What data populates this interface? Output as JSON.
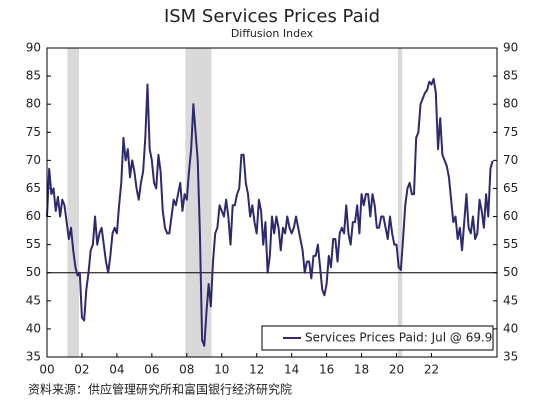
{
  "chart_data": {
    "type": "line",
    "title": "ISM Services Prices Paid",
    "subtitle": "Diffusion Index",
    "source": "资料来源：供应管理研究所和富国银行经济研究院",
    "xlim": [
      2000,
      2025.75
    ],
    "xticks": [
      {
        "value": 2000,
        "label": "00"
      },
      {
        "value": 2002,
        "label": "02"
      },
      {
        "value": 2004,
        "label": "04"
      },
      {
        "value": 2006,
        "label": "06"
      },
      {
        "value": 2008,
        "label": "08"
      },
      {
        "value": 2010,
        "label": "10"
      },
      {
        "value": 2012,
        "label": "12"
      },
      {
        "value": 2014,
        "label": "14"
      },
      {
        "value": 2016,
        "label": "16"
      },
      {
        "value": 2018,
        "label": "18"
      },
      {
        "value": 2020,
        "label": "20"
      },
      {
        "value": 2022,
        "label": "22"
      }
    ],
    "ylim": [
      35,
      90
    ],
    "yticks": [
      35,
      40,
      45,
      50,
      55,
      60,
      65,
      70,
      75,
      80,
      85,
      90
    ],
    "reference_line": 50,
    "shaded_periods": [
      [
        2001.17,
        2001.83
      ],
      [
        2007.92,
        2009.42
      ],
      [
        2020.08,
        2020.33
      ]
    ],
    "shade_color": "#d9d9d9",
    "legend": "lower right",
    "x": [
      2000,
      2000.125,
      2000.25,
      2000.375,
      2000.5,
      2000.625,
      2000.75,
      2000.875,
      2001,
      2001.125,
      2001.25,
      2001.375,
      2001.5,
      2001.625,
      2001.75,
      2001.875,
      2002,
      2002.125,
      2002.25,
      2002.375,
      2002.5,
      2002.625,
      2002.75,
      2002.875,
      2003,
      2003.125,
      2003.25,
      2003.375,
      2003.5,
      2003.625,
      2003.75,
      2003.875,
      2004,
      2004.125,
      2004.25,
      2004.375,
      2004.5,
      2004.625,
      2004.75,
      2004.875,
      2005,
      2005.125,
      2005.25,
      2005.375,
      2005.5,
      2005.625,
      2005.75,
      2005.875,
      2006,
      2006.125,
      2006.25,
      2006.375,
      2006.5,
      2006.625,
      2006.75,
      2006.875,
      2007,
      2007.125,
      2007.25,
      2007.375,
      2007.5,
      2007.625,
      2007.75,
      2007.875,
      2008,
      2008.125,
      2008.25,
      2008.375,
      2008.5,
      2008.625,
      2008.75,
      2008.875,
      2009,
      2009.125,
      2009.25,
      2009.375,
      2009.5,
      2009.625,
      2009.75,
      2009.875,
      2010,
      2010.125,
      2010.25,
      2010.375,
      2010.5,
      2010.625,
      2010.75,
      2010.875,
      2011,
      2011.125,
      2011.25,
      2011.375,
      2011.5,
      2011.625,
      2011.75,
      2011.875,
      2012,
      2012.125,
      2012.25,
      2012.375,
      2012.5,
      2012.625,
      2012.75,
      2012.875,
      2013,
      2013.125,
      2013.25,
      2013.375,
      2013.5,
      2013.625,
      2013.75,
      2013.875,
      2014,
      2014.125,
      2014.25,
      2014.375,
      2014.5,
      2014.625,
      2014.75,
      2014.875,
      2015,
      2015.125,
      2015.25,
      2015.375,
      2015.5,
      2015.625,
      2015.75,
      2015.875,
      2016,
      2016.125,
      2016.25,
      2016.375,
      2016.5,
      2016.625,
      2016.75,
      2016.875,
      2017,
      2017.125,
      2017.25,
      2017.375,
      2017.5,
      2017.625,
      2017.75,
      2017.875,
      2018,
      2018.125,
      2018.25,
      2018.375,
      2018.5,
      2018.625,
      2018.75,
      2018.875,
      2019,
      2019.125,
      2019.25,
      2019.375,
      2019.5,
      2019.625,
      2019.75,
      2019.875,
      2020,
      2020.125,
      2020.25,
      2020.375,
      2020.5,
      2020.625,
      2020.75,
      2020.875,
      2021,
      2021.125,
      2021.25,
      2021.375,
      2021.5,
      2021.625,
      2021.75,
      2021.875,
      2022,
      2022.125,
      2022.25,
      2022.375,
      2022.5,
      2022.625,
      2022.75,
      2022.875,
      2023,
      2023.125,
      2023.25,
      2023.375,
      2023.5,
      2023.625,
      2023.75,
      2023.875,
      2024,
      2024.125,
      2024.25,
      2024.375,
      2024.5,
      2024.625,
      2024.75,
      2024.875,
      2025,
      2025.125,
      2025.25,
      2025.375,
      2025.5
    ],
    "series": [
      {
        "name": "Services Prices Paid: Jul @ 69.9",
        "color": "#2e2a6e",
        "values": [
          60,
          68.5,
          64,
          65,
          61,
          63.5,
          60,
          63,
          62,
          59,
          56,
          58,
          54,
          51,
          49.5,
          50,
          42,
          41.5,
          47,
          50,
          54,
          55,
          60,
          55,
          57,
          58,
          55,
          52,
          50,
          53,
          57,
          58,
          57,
          62,
          66,
          74,
          70,
          72,
          67,
          70,
          68,
          65,
          63,
          66,
          68,
          74,
          83.5,
          72,
          70,
          66,
          65,
          71,
          68,
          61,
          58,
          57,
          57,
          60,
          63,
          62,
          64,
          66,
          61,
          64,
          63,
          68,
          72,
          80,
          75,
          70,
          57,
          38,
          37,
          43,
          48,
          44,
          52,
          57,
          58,
          62,
          61,
          60,
          63,
          60,
          55,
          62,
          62,
          64,
          65,
          71,
          71,
          66,
          64,
          60,
          62,
          59,
          57,
          63,
          61,
          55,
          59,
          50,
          53,
          60,
          57,
          60,
          58,
          54,
          58,
          57,
          60,
          58,
          57,
          58,
          60,
          58,
          56,
          54,
          50,
          52,
          52,
          49,
          53,
          53,
          55,
          51,
          47,
          46,
          48,
          53,
          51,
          56,
          56,
          52,
          57,
          58,
          57,
          62,
          57,
          55,
          59,
          59,
          62,
          57,
          64,
          62,
          64,
          64,
          60,
          64,
          62,
          58,
          58,
          60,
          60,
          58,
          56,
          60,
          57,
          55,
          55,
          51,
          50.5,
          56,
          62,
          65,
          66,
          64,
          64,
          74,
          75,
          80,
          81,
          82,
          82.5,
          84,
          83.5,
          84.5,
          82,
          72,
          77.5,
          71,
          70,
          69,
          67,
          63,
          59,
          60,
          56,
          58,
          54,
          59,
          64,
          58,
          57,
          60,
          56,
          57,
          63,
          61,
          58,
          64,
          60,
          68.5,
          69.9
        ]
      }
    ]
  }
}
